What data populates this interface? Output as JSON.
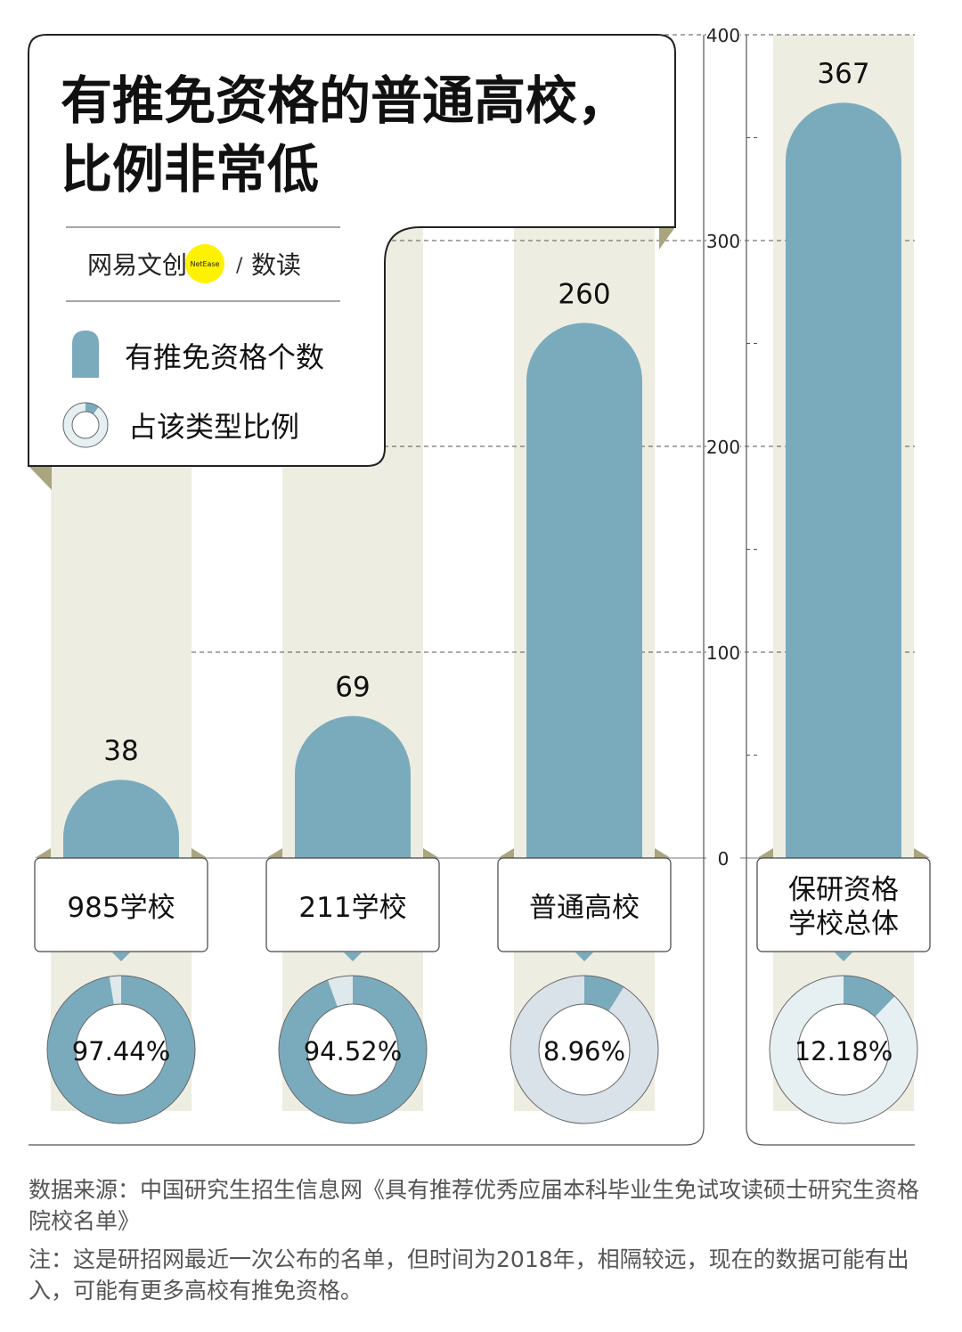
{
  "chart_data": {
    "type": "bar",
    "title": "有推免资格的普通高校，比例非常低",
    "title_lines": [
      "有推免资格的普通高校，",
      "比例非常低"
    ],
    "categories": [
      "985学校",
      "211学校",
      "普通高校",
      "保研资格学校总体"
    ],
    "category_lines": [
      [
        "985学校"
      ],
      [
        "211学校"
      ],
      [
        "普通高校"
      ],
      [
        "保研资格",
        "学校总体"
      ]
    ],
    "series": [
      {
        "name": "有推免资格个数",
        "values": [
          38,
          69,
          260,
          367
        ]
      },
      {
        "name": "占该类型比例",
        "values": [
          97.44,
          94.52,
          8.96,
          12.18
        ]
      }
    ],
    "value_labels": [
      "38",
      "69",
      "260",
      "367"
    ],
    "percent_labels": [
      "97.44%",
      "94.52%",
      "8.96%",
      "12.18%"
    ],
    "ylim": [
      0,
      400
    ],
    "yticks": [
      "0",
      "100",
      "200",
      "300",
      "400"
    ],
    "grid": true,
    "legend": "top-left",
    "colors": {
      "bar": "#7aabbd",
      "column_bg": "#eeede2",
      "ring_rest": [
        "#dfe8eb",
        "#dfe8eb",
        "#d8e2e8",
        "#e6eff2"
      ]
    }
  },
  "brand": {
    "logo": "网易文创 NetEase / 数读"
  },
  "legend": {
    "bar_label": "有推免资格个数",
    "ring_label": "占该类型比例"
  },
  "footer": {
    "source": "数据来源：中国研究生招生信息网《具有推荐优秀应届本科毕业生免试攻读硕士研究生资格院校名单》",
    "note": "注：这是研招网最近一次公布的名单，但时间为2018年，相隔较远，现在的数据可能有出入，可能有更多高校有推免资格。"
  }
}
